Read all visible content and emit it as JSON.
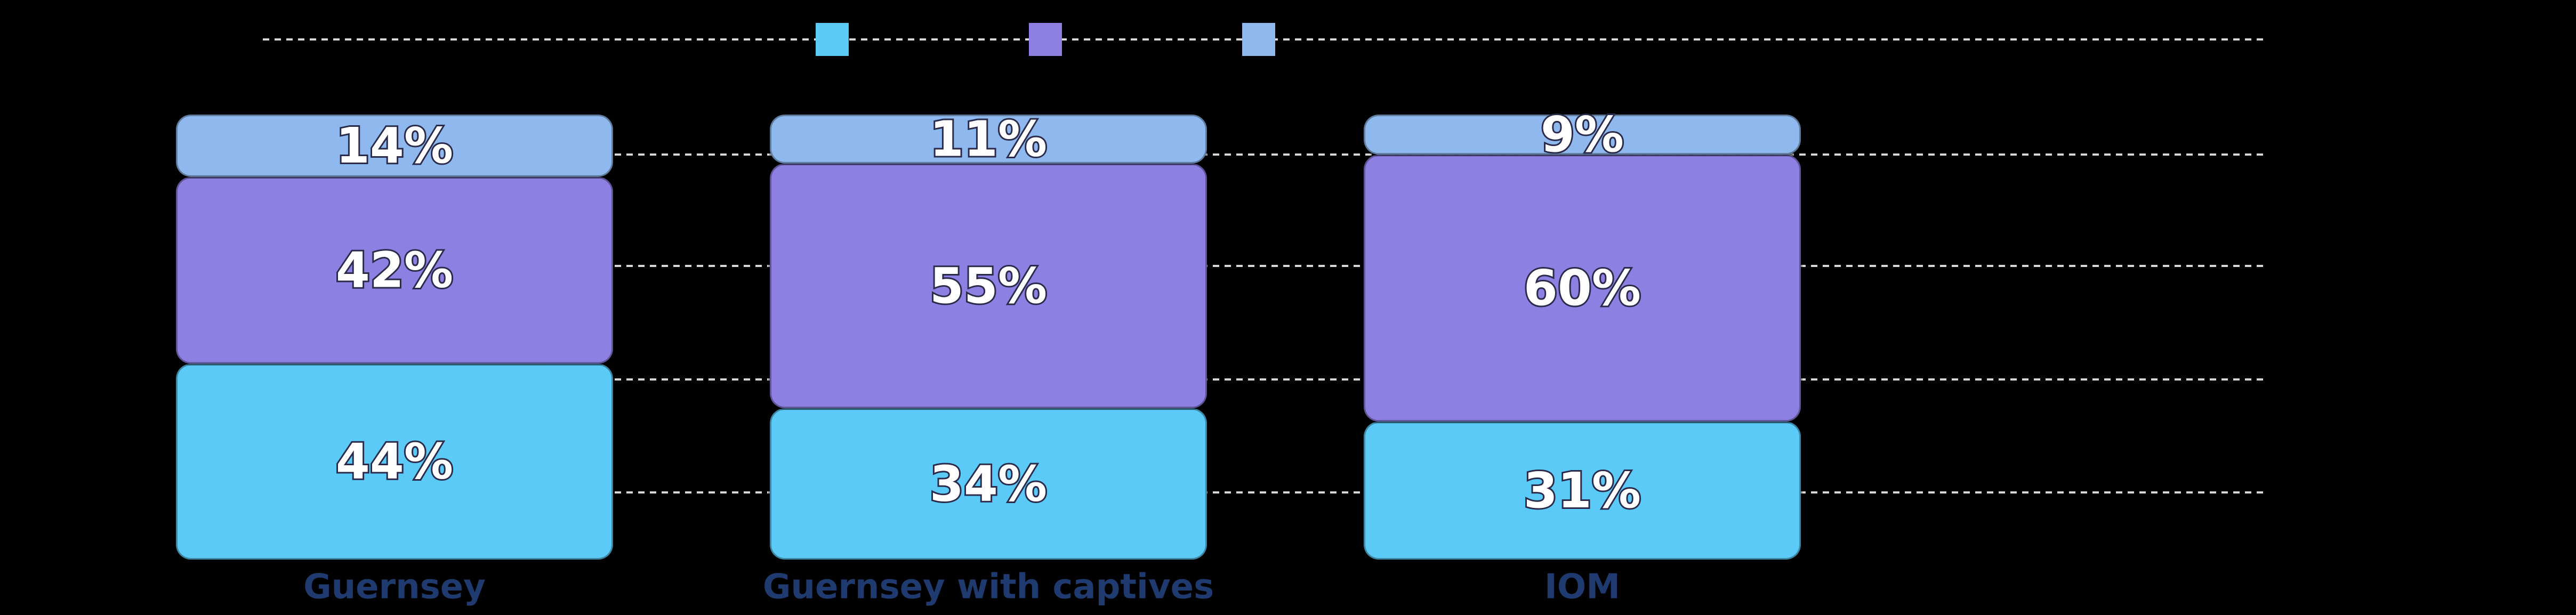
{
  "chart_data": {
    "type": "stacked_bar",
    "categories": [
      "Guernsey",
      "Guernsey with captives",
      "IOM"
    ],
    "series": [
      {
        "color": "#5ccaf7",
        "values": [
          44,
          34,
          31
        ],
        "value_labels": [
          "44%",
          "34%",
          "31%"
        ]
      },
      {
        "color": "#8d80e2",
        "values": [
          42,
          55,
          60
        ],
        "value_labels": [
          "42%",
          "55%",
          "60%"
        ]
      },
      {
        "color": "#8fb9ee",
        "values": [
          14,
          11,
          9
        ],
        "value_labels": [
          "14%",
          "11%",
          "9%"
        ]
      }
    ],
    "ylim": [
      0,
      100
    ]
  }
}
